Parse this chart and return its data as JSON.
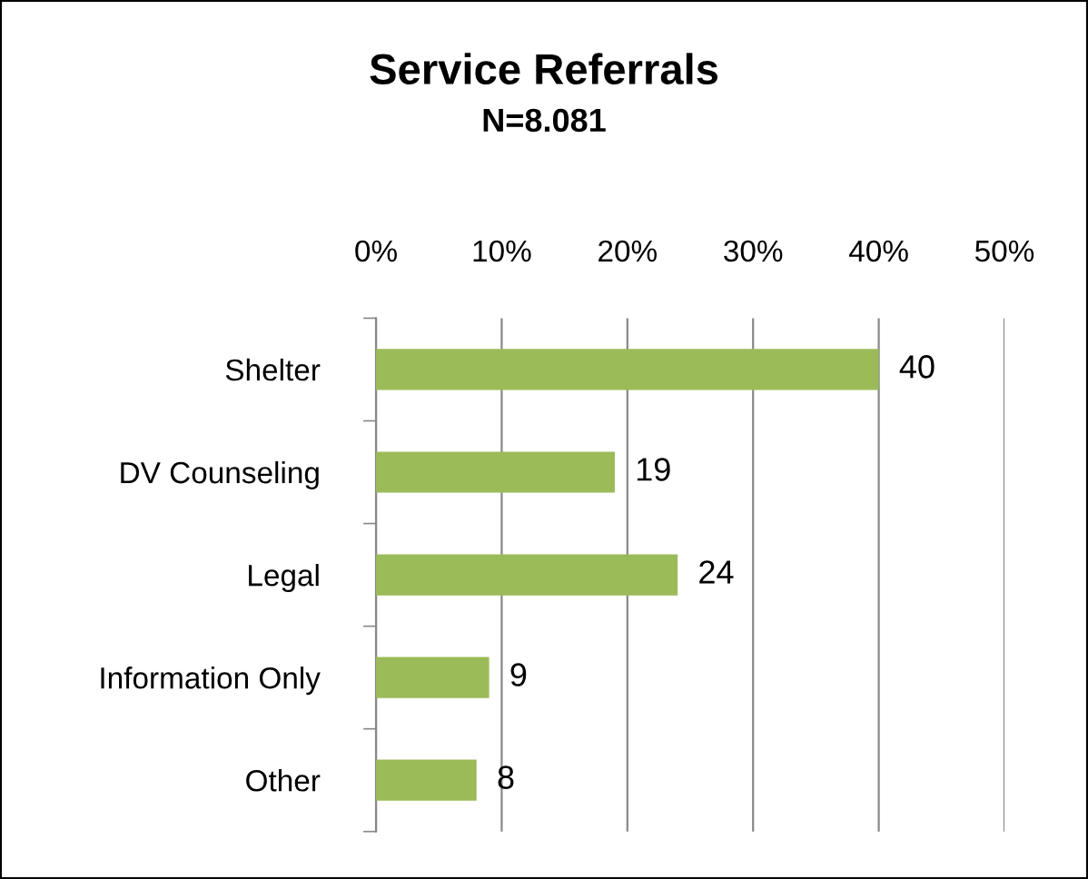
{
  "chart_data": {
    "type": "bar",
    "orientation": "horizontal",
    "title": "Service Referrals",
    "subtitle": "N=8.081",
    "categories": [
      "Shelter",
      "DV Counseling",
      "Legal",
      "Information Only",
      "Other"
    ],
    "values": [
      40,
      19,
      24,
      9,
      8
    ],
    "color": "#9bbb59",
    "xlim": [
      0,
      50
    ],
    "xticks": [
      {
        "value": 0,
        "label": "0%"
      },
      {
        "value": 10,
        "label": "10%"
      },
      {
        "value": 20,
        "label": "20%"
      },
      {
        "value": 30,
        "label": "30%"
      },
      {
        "value": 40,
        "label": "40%"
      },
      {
        "value": 50,
        "label": "50%"
      }
    ],
    "grid": "x",
    "data_labels": true
  }
}
